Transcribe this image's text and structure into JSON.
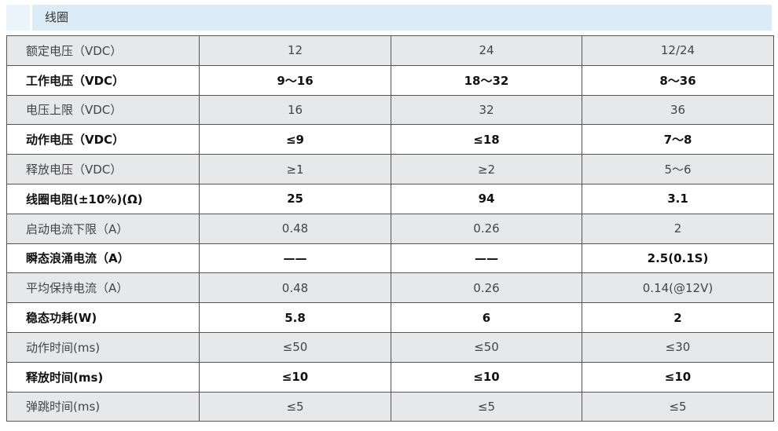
{
  "header": {
    "title": "线圈"
  },
  "table": {
    "rows": [
      [
        "额定电压（VDC）",
        "12",
        "24",
        "12/24"
      ],
      [
        "工作电压（VDC）",
        "9～16",
        "18～32",
        "8～36"
      ],
      [
        "电压上限（VDC）",
        "16",
        "32",
        "36"
      ],
      [
        "动作电压（VDC）",
        "≤9",
        "≤18",
        "7～8"
      ],
      [
        "释放电压（VDC）",
        "≥1",
        "≥2",
        "5～6"
      ],
      [
        "线圈电阻(±10%)(Ω)",
        "25",
        "94",
        "3.1"
      ],
      [
        "启动电流下限（A）",
        "0.48",
        "0.26",
        "2"
      ],
      [
        "瞬态浪涌电流（A）",
        "——",
        "——",
        "2.5(0.1S)"
      ],
      [
        "平均保持电流（A）",
        "0.48",
        "0.26",
        "0.14(@12V)"
      ],
      [
        "稳态功耗(W)",
        "5.8",
        "6",
        "2"
      ],
      [
        "动作时间(ms)",
        "≤50",
        "≤50",
        "≤30"
      ],
      [
        "释放时间(ms)",
        "≤10",
        "≤10",
        "≤10"
      ],
      [
        "弹跳时间(ms)",
        "≤5",
        "≤5",
        "≤5"
      ]
    ]
  }
}
